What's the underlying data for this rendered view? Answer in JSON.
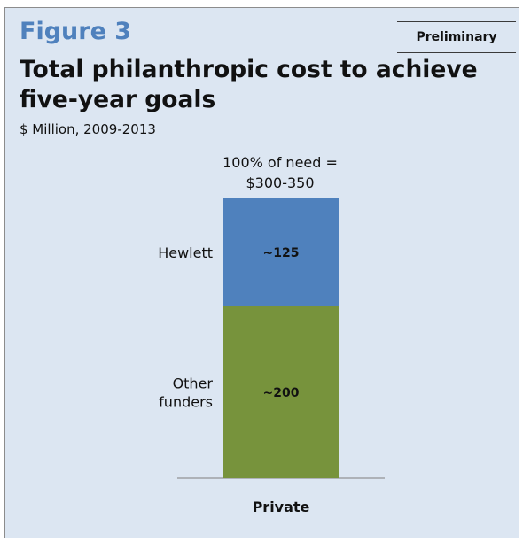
{
  "figure_label": "Figure 3",
  "badge": "Preliminary",
  "chart_data": {
    "type": "bar",
    "stacked": true,
    "title": "Total philanthropic cost to achieve five-year goals",
    "subtitle": "$ Million, 2009-2013",
    "total_label_line1": "100% of need =",
    "total_label_line2": "$300-350",
    "categories": [
      "Private"
    ],
    "series": [
      {
        "name": "Other funders",
        "name_lines": [
          "Other",
          "funders"
        ],
        "values": [
          200
        ],
        "value_label": "~200",
        "color": "#77933c"
      },
      {
        "name": "Hewlett",
        "name_lines": [
          "Hewlett"
        ],
        "values": [
          125
        ],
        "value_label": "~125",
        "color": "#4f81bd"
      }
    ],
    "ylim": [
      0,
      325
    ]
  }
}
